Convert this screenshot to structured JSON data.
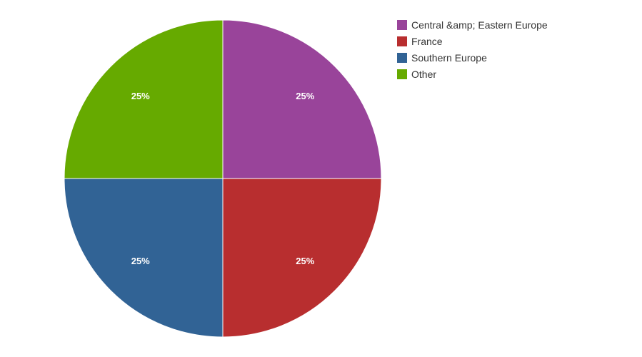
{
  "chart_data": {
    "type": "pie",
    "categories": [
      "Central &amp; Eastern Europe",
      "France",
      "Southern Europe",
      "Other"
    ],
    "values": [
      25,
      25,
      25,
      25
    ],
    "data_labels": [
      "25%",
      "25%",
      "25%",
      "25%"
    ],
    "colors": [
      "#99449a",
      "#b82e2f",
      "#316395",
      "#66aa00"
    ],
    "legend_position": "top-right",
    "title": ""
  }
}
